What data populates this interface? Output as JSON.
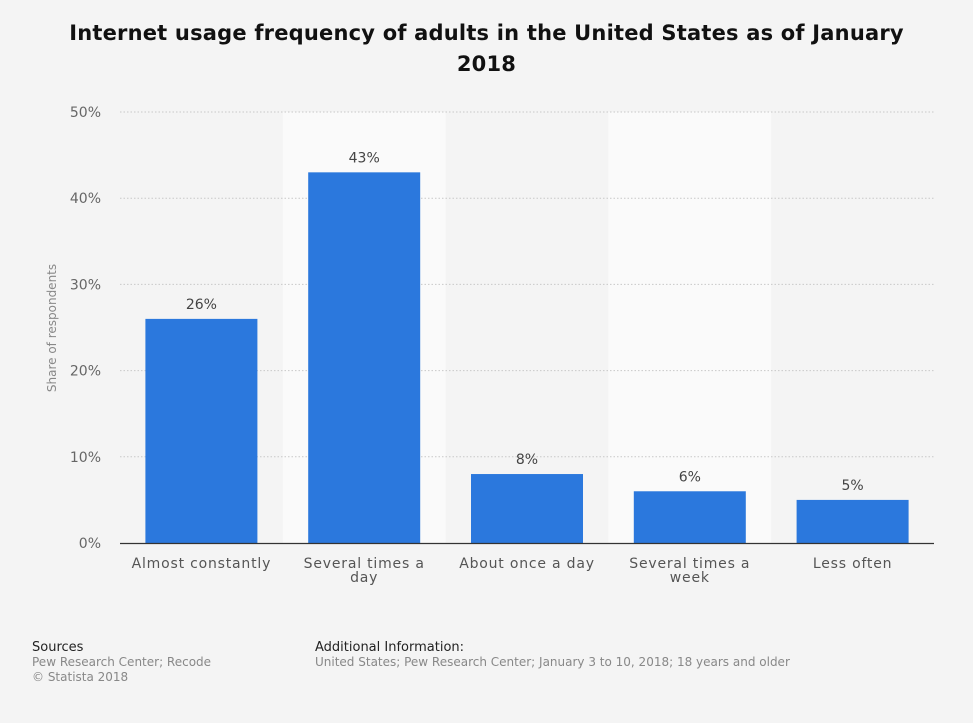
{
  "chart_data": {
    "type": "bar",
    "title": "Internet usage frequency of adults in the United States as of January 2018",
    "categories": [
      "Almost constantly",
      "Several times a day",
      "About once a day",
      "Several times a week",
      "Less often"
    ],
    "values": [
      26,
      43,
      8,
      6,
      5
    ],
    "data_labels": [
      "26%",
      "43%",
      "8%",
      "6%",
      "5%"
    ],
    "ylabel": "Share of respondents",
    "xlabel": "",
    "ylim": [
      0,
      50
    ],
    "yticks": [
      0,
      10,
      20,
      30,
      40,
      50
    ],
    "ytick_labels": [
      "0%",
      "10%",
      "20%",
      "30%",
      "40%",
      "50%"
    ],
    "grid": true,
    "bar_color": "#2b78dd"
  },
  "footer": {
    "sources_heading": "Sources",
    "sources_line1": "Pew Research Center; Recode",
    "sources_line2": "© Statista 2018",
    "additional_heading": "Additional Information:",
    "additional_text": "United States; Pew Research Center; January 3 to 10, 2018; 18 years and older"
  }
}
